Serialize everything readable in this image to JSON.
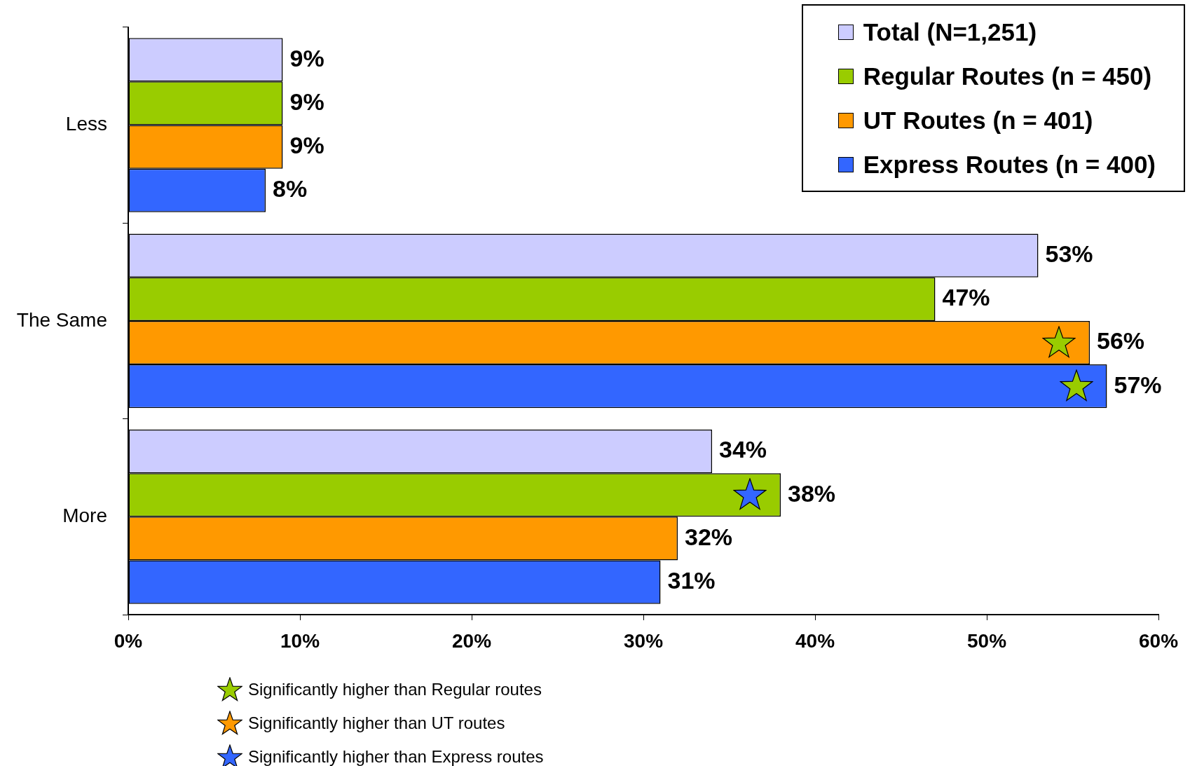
{
  "chart_data": {
    "type": "bar",
    "orientation": "horizontal",
    "categories": [
      "Less",
      "The Same",
      "More"
    ],
    "series": [
      {
        "name": "Total (N=1,251)",
        "color": "#ccccff",
        "values": [
          9,
          53,
          34
        ]
      },
      {
        "name": "Regular Routes (n = 450)",
        "color": "#99cc00",
        "values": [
          9,
          47,
          38
        ]
      },
      {
        "name": "UT Routes (n = 401)",
        "color": "#ff9900",
        "values": [
          9,
          56,
          32
        ]
      },
      {
        "name": "Express Routes (n = 400)",
        "color": "#3366ff",
        "values": [
          8,
          57,
          31
        ]
      }
    ],
    "xlim": [
      0,
      60
    ],
    "xticks": [
      {
        "value": 0,
        "label": "0%"
      },
      {
        "value": 10,
        "label": "10%"
      },
      {
        "value": 20,
        "label": "20%"
      },
      {
        "value": 30,
        "label": "30%"
      },
      {
        "value": 40,
        "label": "40%"
      },
      {
        "value": 50,
        "label": "50%"
      },
      {
        "value": 60,
        "label": "60%"
      }
    ],
    "value_labels": [
      [
        "9%",
        "53%",
        "34%"
      ],
      [
        "9%",
        "47%",
        "38%"
      ],
      [
        "9%",
        "56%",
        "32%"
      ],
      [
        "8%",
        "57%",
        "31%"
      ]
    ],
    "legend": "top right",
    "grid": false,
    "annotations": [
      "Significantly higher than Regular routes",
      "Significantly higher than UT routes",
      "Significantly higher than Express routes"
    ]
  }
}
